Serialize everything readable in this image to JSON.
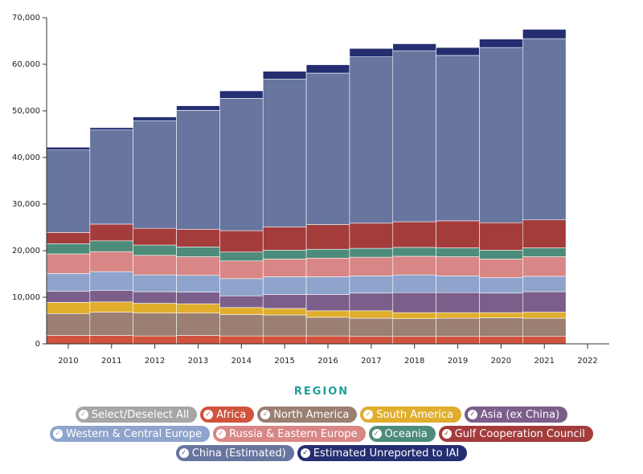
{
  "chart_data": {
    "type": "bar",
    "stacked": true,
    "categories": [
      "2010",
      "2011",
      "2012",
      "2013",
      "2014",
      "2015",
      "2016",
      "2017",
      "2018",
      "2019",
      "2020",
      "2021",
      "2022"
    ],
    "ylim": [
      0,
      70000
    ],
    "yticks": [
      0,
      10000,
      20000,
      30000,
      40000,
      50000,
      60000,
      70000
    ],
    "ytick_labels": [
      "0",
      "10,000",
      "20,000",
      "30,000",
      "40,000",
      "50,000",
      "60,000",
      "70,000"
    ],
    "legend_title": "REGION",
    "series": [
      {
        "name": "Africa",
        "color": "#d0533d",
        "values": [
          1800,
          1800,
          1700,
          1800,
          1700,
          1700,
          1700,
          1600,
          1600,
          1600,
          1600,
          1600,
          null
        ]
      },
      {
        "name": "North America",
        "color": "#9a7f72",
        "values": [
          4700,
          5000,
          4900,
          4800,
          4600,
          4500,
          4000,
          3900,
          3800,
          3900,
          4000,
          3900,
          null
        ]
      },
      {
        "name": "South America",
        "color": "#e0ae2c",
        "values": [
          2400,
          2200,
          2100,
          2000,
          1500,
          1400,
          1400,
          1600,
          1300,
          1200,
          1100,
          1300,
          null
        ]
      },
      {
        "name": "Asia (ex China)",
        "color": "#7b5f8a",
        "values": [
          2400,
          2500,
          2500,
          2500,
          2500,
          3000,
          3500,
          3800,
          4300,
          4300,
          4200,
          4400,
          null
        ]
      },
      {
        "name": "Western & Central Europe",
        "color": "#8fa4cc",
        "values": [
          3800,
          4000,
          3600,
          3600,
          3700,
          3800,
          3800,
          3700,
          3800,
          3600,
          3300,
          3300,
          null
        ]
      },
      {
        "name": "Russia & Eastern Europe",
        "color": "#d98686",
        "values": [
          4200,
          4300,
          4200,
          4000,
          3800,
          3800,
          4000,
          4000,
          4000,
          4100,
          4000,
          4200,
          null
        ]
      },
      {
        "name": "Oceania",
        "color": "#4d8c7a",
        "values": [
          2200,
          2300,
          2200,
          2100,
          1900,
          1900,
          1900,
          1900,
          1900,
          1900,
          1900,
          1900,
          null
        ]
      },
      {
        "name": "Gulf Cooperation Council",
        "color": "#a43c3c",
        "values": [
          2400,
          3600,
          3600,
          3800,
          4600,
          5000,
          5300,
          5400,
          5500,
          5800,
          5900,
          6000,
          null
        ]
      },
      {
        "name": "China (Estimated)",
        "color": "#67759f",
        "values": [
          17700,
          20200,
          23100,
          25500,
          28400,
          31700,
          32500,
          35700,
          36700,
          35500,
          37600,
          38900,
          null
        ]
      },
      {
        "name": "Estimated Unreported to IAI",
        "color": "#252e70",
        "values": [
          600,
          500,
          800,
          1000,
          1600,
          1700,
          1800,
          1800,
          1500,
          1700,
          1800,
          2000,
          null
        ]
      }
    ]
  },
  "legend": {
    "select_all_label": "Select/Deselect All",
    "select_all_color": "#a6a6a6"
  }
}
